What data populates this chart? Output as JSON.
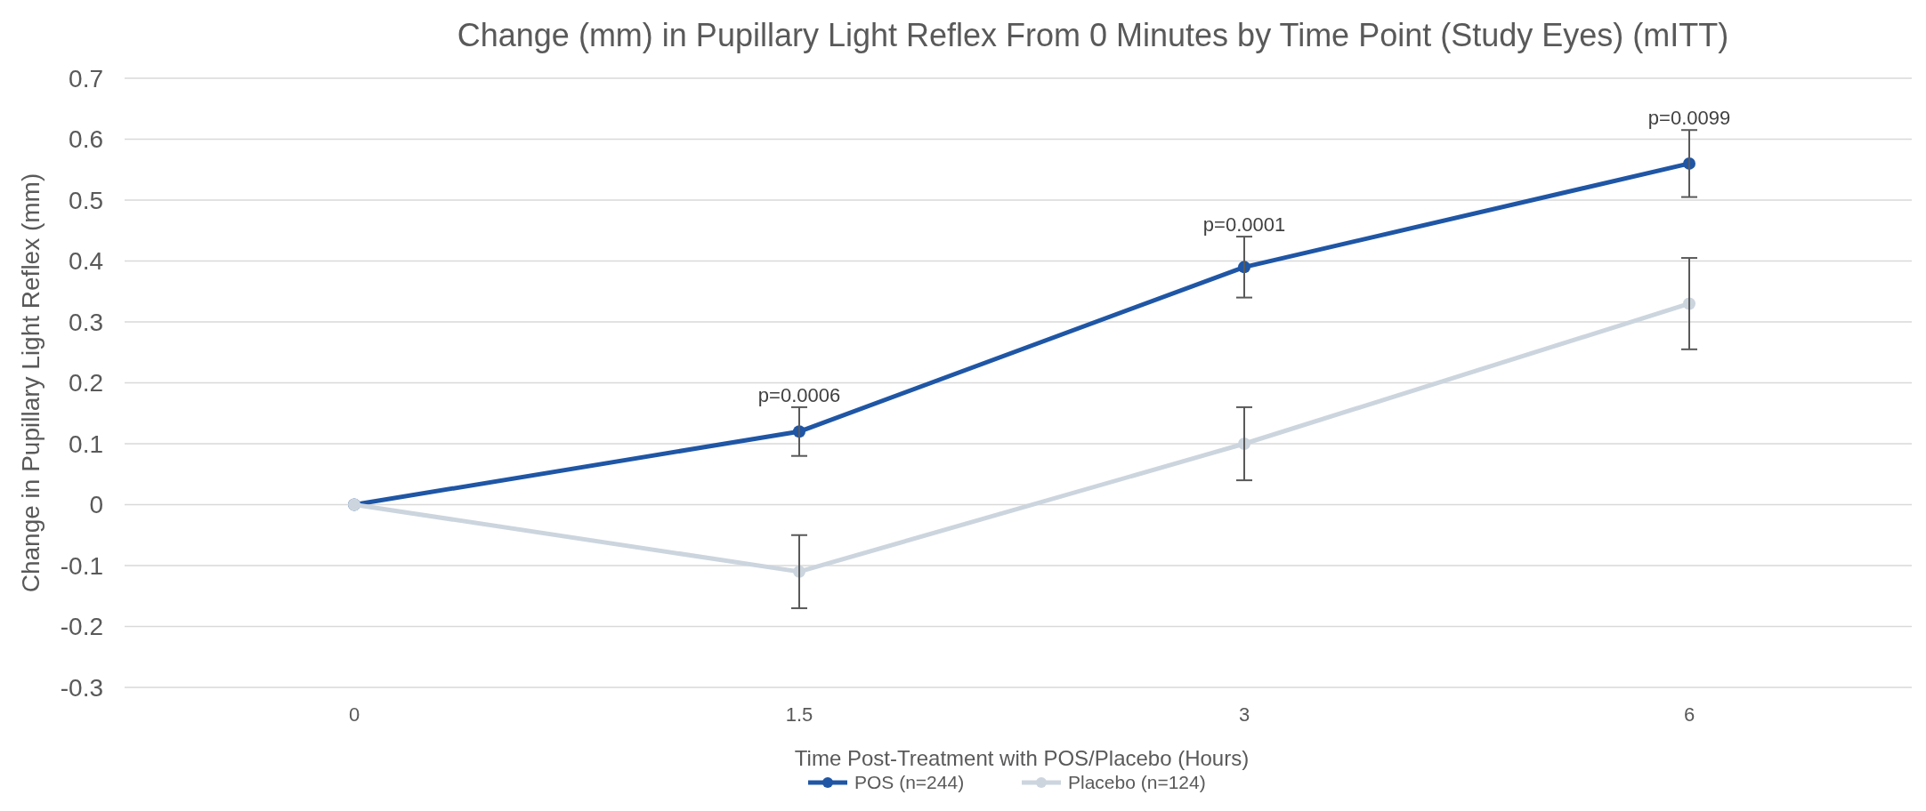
{
  "chart_data": {
    "type": "line",
    "title": "Change (mm) in Pupillary Light Reflex From 0 Minutes by Time Point (Study Eyes) (mITT)",
    "xlabel": "Time Post-Treatment with POS/Placebo (Hours)",
    "ylabel": "Change in Pupillary Light Reflex (mm)",
    "categories": [
      "0",
      "1.5",
      "3",
      "6"
    ],
    "series": [
      {
        "name": "POS (n=244)",
        "color": "#1f56a5",
        "values": [
          0,
          0.12,
          0.39,
          0.56
        ],
        "errors": [
          null,
          0.04,
          0.05,
          0.055
        ]
      },
      {
        "name": "Placebo (n=124)",
        "color": "#ccd5de",
        "values": [
          0,
          -0.11,
          0.1,
          0.33
        ],
        "errors": [
          null,
          0.06,
          0.06,
          0.075
        ]
      }
    ],
    "annotations": [
      {
        "text": "p=0.0006",
        "x": "1.5",
        "y": 0.16
      },
      {
        "text": "p=0.0001",
        "x": "3",
        "y": 0.44
      },
      {
        "text": "p=0.0099",
        "x": "6",
        "y": 0.615
      }
    ],
    "ylim": [
      -0.3,
      0.7
    ],
    "yticks": [
      -0.3,
      -0.2,
      -0.1,
      0,
      0.1,
      0.2,
      0.3,
      0.4,
      0.5,
      0.6,
      0.7
    ],
    "grid": "y",
    "legend": "bottom",
    "marker": "circle"
  }
}
